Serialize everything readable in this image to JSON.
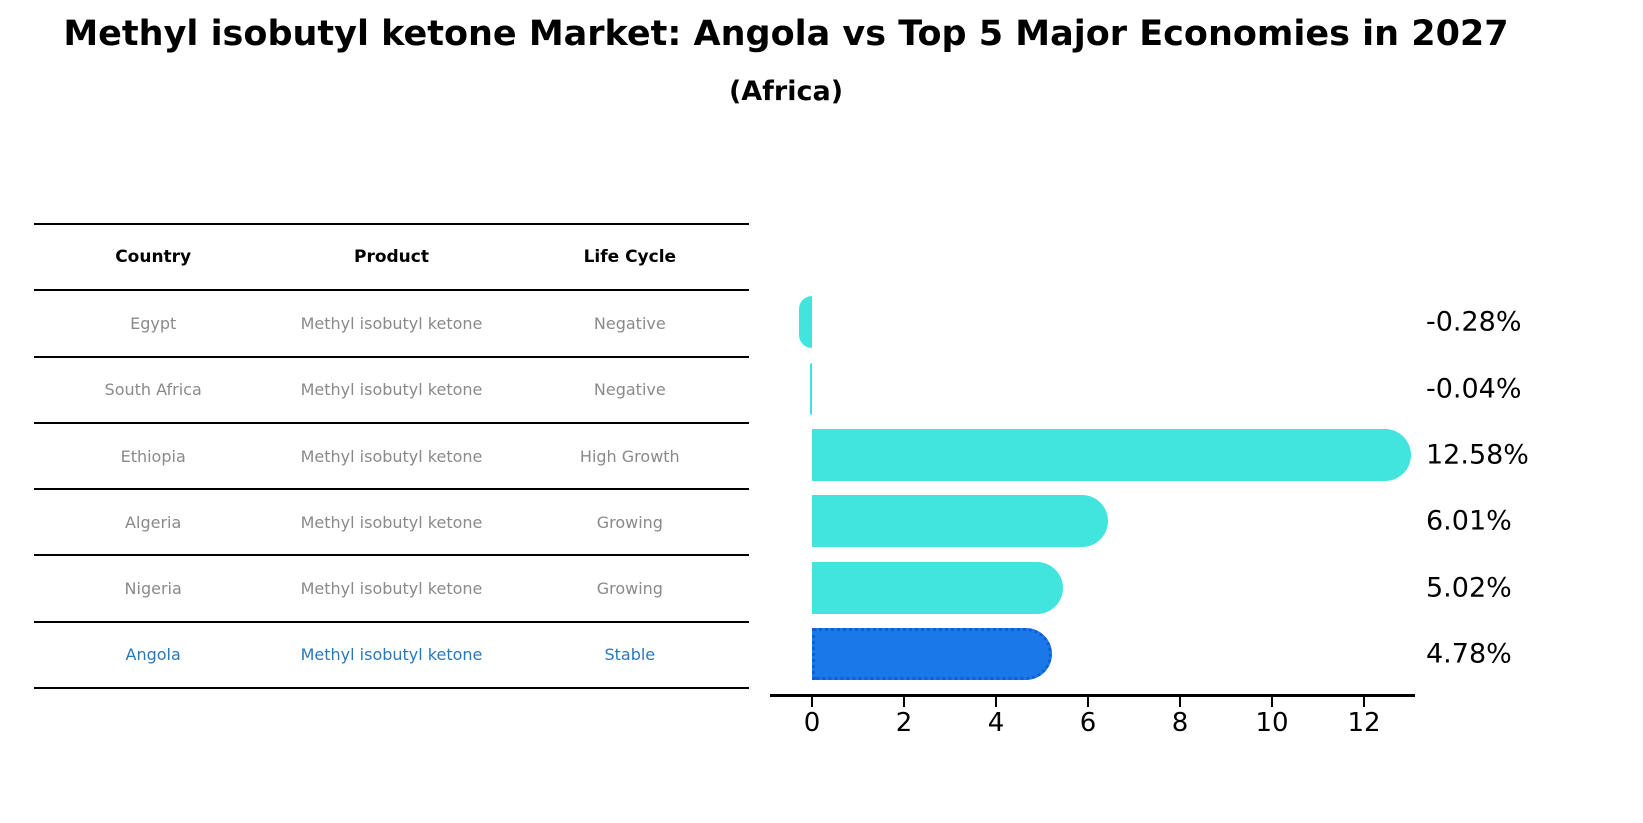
{
  "title": "Methyl isobutyl ketone Market: Angola vs Top 5 Major Economies in 2027",
  "subtitle": "(Africa)",
  "table": {
    "headers": [
      "Country",
      "Product",
      "Life Cycle"
    ],
    "rows": [
      {
        "country": "Egypt",
        "product": "Methyl isobutyl ketone",
        "life_cycle": "Negative",
        "highlight": false
      },
      {
        "country": "South Africa",
        "product": "Methyl isobutyl ketone",
        "life_cycle": "Negative",
        "highlight": false
      },
      {
        "country": "Ethiopia",
        "product": "Methyl isobutyl ketone",
        "life_cycle": "High Growth",
        "highlight": false
      },
      {
        "country": "Algeria",
        "product": "Methyl isobutyl ketone",
        "life_cycle": "Growing",
        "highlight": false
      },
      {
        "country": "Nigeria",
        "product": "Methyl isobutyl ketone",
        "life_cycle": "Growing",
        "highlight": false
      },
      {
        "country": "Angola",
        "product": "Methyl isobutyl ketone",
        "life_cycle": "Stable",
        "highlight": true
      }
    ]
  },
  "chart_data": {
    "type": "bar",
    "orientation": "horizontal",
    "title": "Methyl isobutyl ketone Market: Angola vs Top 5 Major Economies in 2027",
    "subtitle": "(Africa)",
    "categories": [
      "Egypt",
      "South Africa",
      "Ethiopia",
      "Algeria",
      "Nigeria",
      "Angola"
    ],
    "values": [
      -0.28,
      -0.04,
      12.58,
      6.01,
      5.02,
      4.78
    ],
    "value_labels": [
      "-0.28%",
      "-0.04%",
      "12.58%",
      "6.01%",
      "5.02%",
      "4.78%"
    ],
    "x_ticks": [
      0,
      2,
      4,
      6,
      8,
      10,
      12
    ],
    "xlim": [
      -0.9,
      13.1
    ],
    "grid": false,
    "legend": "none",
    "bar_color": "#42E5DE",
    "highlight_bar_color": "#1B78E8",
    "highlight_border_color": "#0E5FD0",
    "highlight_border_style": "dotted",
    "highlight_index": 5
  },
  "colors": {
    "background": "#FFFFFF",
    "bar_cyan": "#42E5DE",
    "bar_blue": "#1B78E8",
    "table_text_gray": "#8A8A8A",
    "highlight_text_blue": "#2878BC",
    "axis_black": "#000000"
  }
}
